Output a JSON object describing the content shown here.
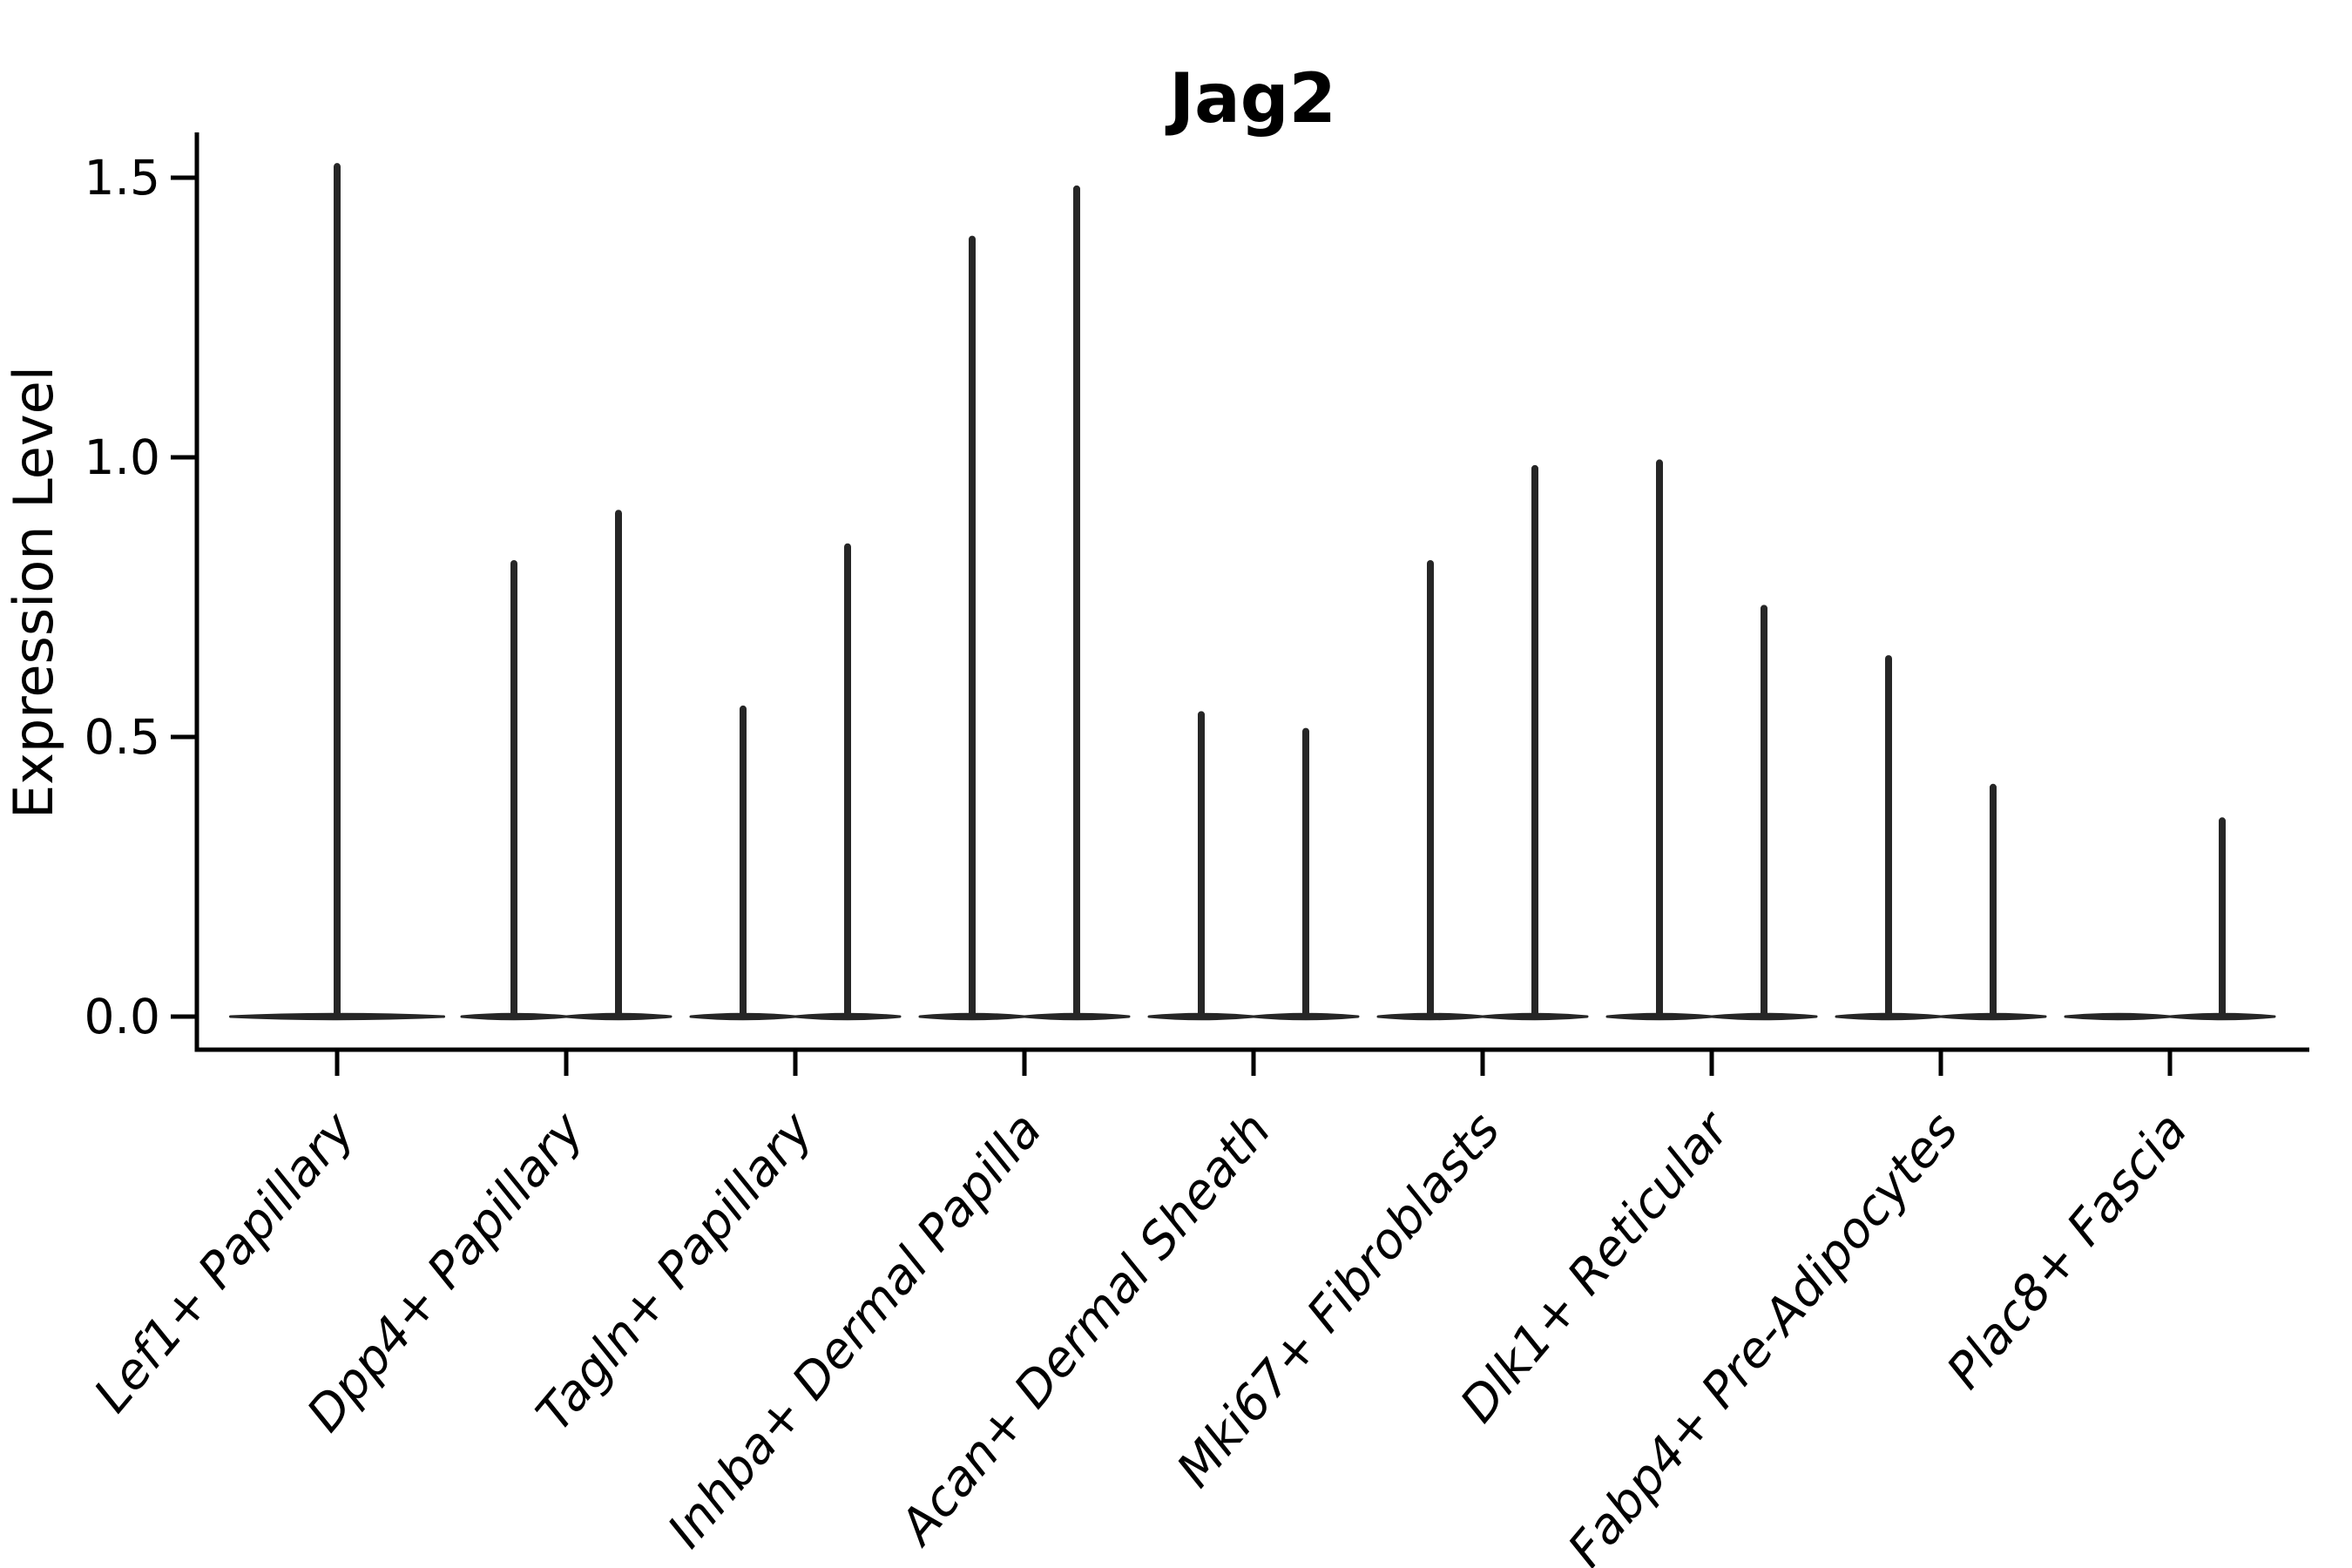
{
  "figure": {
    "title": "Jag2",
    "background": "#ffffff"
  },
  "colors": {
    "violin_stroke": "#262626",
    "axis": "#000000",
    "text": "#000000"
  },
  "axes": {
    "ylabel": "Expression Level",
    "ytick_labels": [
      "0.0",
      "0.5",
      "1.0",
      "1.5"
    ],
    "ytick_values": [
      0,
      0.5,
      1.0,
      1.5
    ],
    "ylim": [
      -0.06,
      1.58
    ]
  },
  "chart_data": {
    "type": "violin",
    "title": "Jag2",
    "xlabel": "",
    "ylabel": "Expression Level",
    "ylim": [
      -0.06,
      1.58
    ],
    "yticks": [
      0,
      0.5,
      1.0,
      1.5
    ],
    "grid": false,
    "legend": "none",
    "description": "Split violin plot of Jag2 expression per fibroblast subtype; nearly all mass sits at 0 (flat violin bodies) with thin density spikes rising to the maximum expression of each group. Categories 2-9 contain two side-by-side violins; category 1 has a single full-width violin; the left violin of the last category is flat (all zeros).",
    "categories": [
      "Lef1+ Papillary",
      "Dpp4+ Papillary",
      "Tagln+ Papillary",
      "Inhba+ Dermal Papilla",
      "Acan+ Dermal Sheath",
      "Mki67+ Fibroblasts",
      "Dlk1+ Reticular",
      "Fabp4+ Pre-Adipocytes",
      "Plac8+ Fascia"
    ],
    "violins": [
      {
        "category_index": 0,
        "side": "center",
        "base": 0,
        "peak": 1.52
      },
      {
        "category_index": 1,
        "side": "left",
        "base": 0,
        "peak": 0.81
      },
      {
        "category_index": 1,
        "side": "right",
        "base": 0,
        "peak": 0.9
      },
      {
        "category_index": 2,
        "side": "left",
        "base": 0,
        "peak": 0.55
      },
      {
        "category_index": 2,
        "side": "right",
        "base": 0,
        "peak": 0.84
      },
      {
        "category_index": 3,
        "side": "left",
        "base": 0,
        "peak": 1.39
      },
      {
        "category_index": 3,
        "side": "right",
        "base": 0,
        "peak": 1.48
      },
      {
        "category_index": 4,
        "side": "left",
        "base": 0,
        "peak": 0.54
      },
      {
        "category_index": 4,
        "side": "right",
        "base": 0,
        "peak": 0.51
      },
      {
        "category_index": 5,
        "side": "left",
        "base": 0,
        "peak": 0.81
      },
      {
        "category_index": 5,
        "side": "right",
        "base": 0,
        "peak": 0.98
      },
      {
        "category_index": 6,
        "side": "left",
        "base": 0,
        "peak": 0.99
      },
      {
        "category_index": 6,
        "side": "right",
        "base": 0,
        "peak": 0.73
      },
      {
        "category_index": 7,
        "side": "left",
        "base": 0,
        "peak": 0.64
      },
      {
        "category_index": 7,
        "side": "right",
        "base": 0,
        "peak": 0.41
      },
      {
        "category_index": 8,
        "side": "left",
        "base": 0,
        "peak": 0.0
      },
      {
        "category_index": 8,
        "side": "right",
        "base": 0,
        "peak": 0.35
      }
    ]
  }
}
